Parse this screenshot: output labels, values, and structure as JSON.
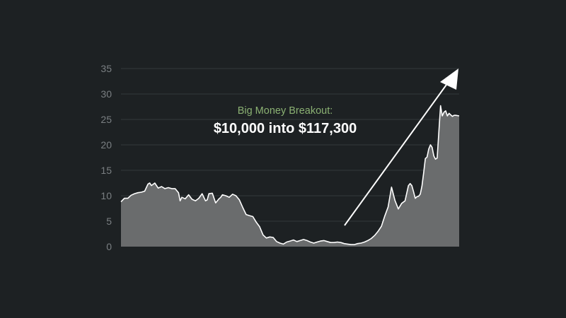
{
  "colors": {
    "background": "#1d2123",
    "grid": "#33393b",
    "tick_text": "#7a7f82",
    "area_fill": "#6a6c6d",
    "line": "#ffffff",
    "annotation_sub": "#8bb173",
    "annotation_main": "#ffffff",
    "arrow": "#ffffff"
  },
  "annotation": {
    "subtitle": "Big Money Breakout:",
    "headline": "$10,000 into $117,300"
  },
  "chart_data": {
    "type": "area",
    "title": "",
    "xlabel": "",
    "ylabel": "",
    "ylim": [
      0,
      35
    ],
    "yticks": [
      0,
      5,
      10,
      15,
      20,
      25,
      30,
      35
    ],
    "grid": true,
    "legend": "none",
    "x_range": [
      0,
      100
    ],
    "series": [
      {
        "name": "",
        "x": [
          0,
          1,
          2,
          3,
          4,
          5,
          6,
          7,
          8,
          8.5,
          9,
          10,
          11,
          12,
          13,
          14,
          15,
          16,
          17,
          17.5,
          18,
          19,
          20,
          21,
          22,
          23,
          24,
          25,
          25.5,
          26,
          27,
          28,
          29,
          29.5,
          30,
          31,
          32,
          33,
          34,
          35,
          36,
          37,
          38,
          39,
          40,
          41,
          42,
          43,
          44,
          45,
          46,
          47,
          48,
          49,
          50,
          51,
          52,
          53,
          54,
          55,
          56,
          57,
          58,
          59,
          60,
          61,
          62,
          63,
          64,
          65,
          66,
          67,
          68,
          69,
          70,
          71,
          72,
          73,
          74,
          75,
          76,
          77,
          78,
          79,
          80,
          81,
          82,
          83,
          84,
          85,
          85.5,
          86,
          86.5,
          87,
          87.5,
          88,
          88.5,
          89,
          89.5,
          90,
          90.5,
          91,
          91.5,
          92,
          92.5,
          93,
          93.5,
          94,
          94.5,
          95,
          95.5,
          96,
          96.5,
          97,
          97.5,
          98,
          98.5,
          99,
          100
        ],
        "values": [
          8.8,
          9.5,
          9.5,
          10.1,
          10.4,
          10.6,
          10.7,
          10.9,
          12.3,
          12.5,
          12.0,
          12.5,
          11.5,
          11.8,
          11.4,
          11.6,
          11.4,
          11.4,
          10.6,
          9.0,
          9.7,
          9.4,
          10.2,
          9.3,
          9.0,
          9.5,
          10.4,
          9.0,
          9.2,
          10.4,
          10.5,
          8.6,
          9.4,
          9.7,
          10.2,
          10.0,
          9.7,
          10.3,
          10.0,
          9.2,
          7.7,
          6.3,
          6.1,
          5.9,
          4.8,
          3.9,
          2.3,
          1.7,
          1.9,
          1.8,
          1.0,
          0.7,
          0.5,
          0.9,
          1.1,
          1.3,
          1.0,
          1.2,
          1.4,
          1.2,
          0.9,
          0.7,
          0.9,
          1.1,
          1.2,
          1.0,
          0.8,
          0.8,
          0.9,
          0.8,
          0.6,
          0.5,
          0.4,
          0.4,
          0.6,
          0.7,
          0.9,
          1.2,
          1.6,
          2.2,
          3.0,
          4.0,
          6.0,
          7.8,
          11.7,
          9.1,
          7.4,
          8.5,
          9.0,
          12.0,
          12.4,
          12.0,
          10.8,
          9.5,
          9.8,
          9.9,
          10.3,
          11.9,
          14.5,
          17.3,
          17.6,
          19.2,
          20.0,
          19.5,
          17.8,
          17.2,
          17.4,
          22.6,
          27.7,
          25.7,
          26.4,
          26.7,
          25.7,
          26.2,
          25.9,
          25.6,
          25.8,
          25.8,
          25.7
        ]
      }
    ]
  }
}
